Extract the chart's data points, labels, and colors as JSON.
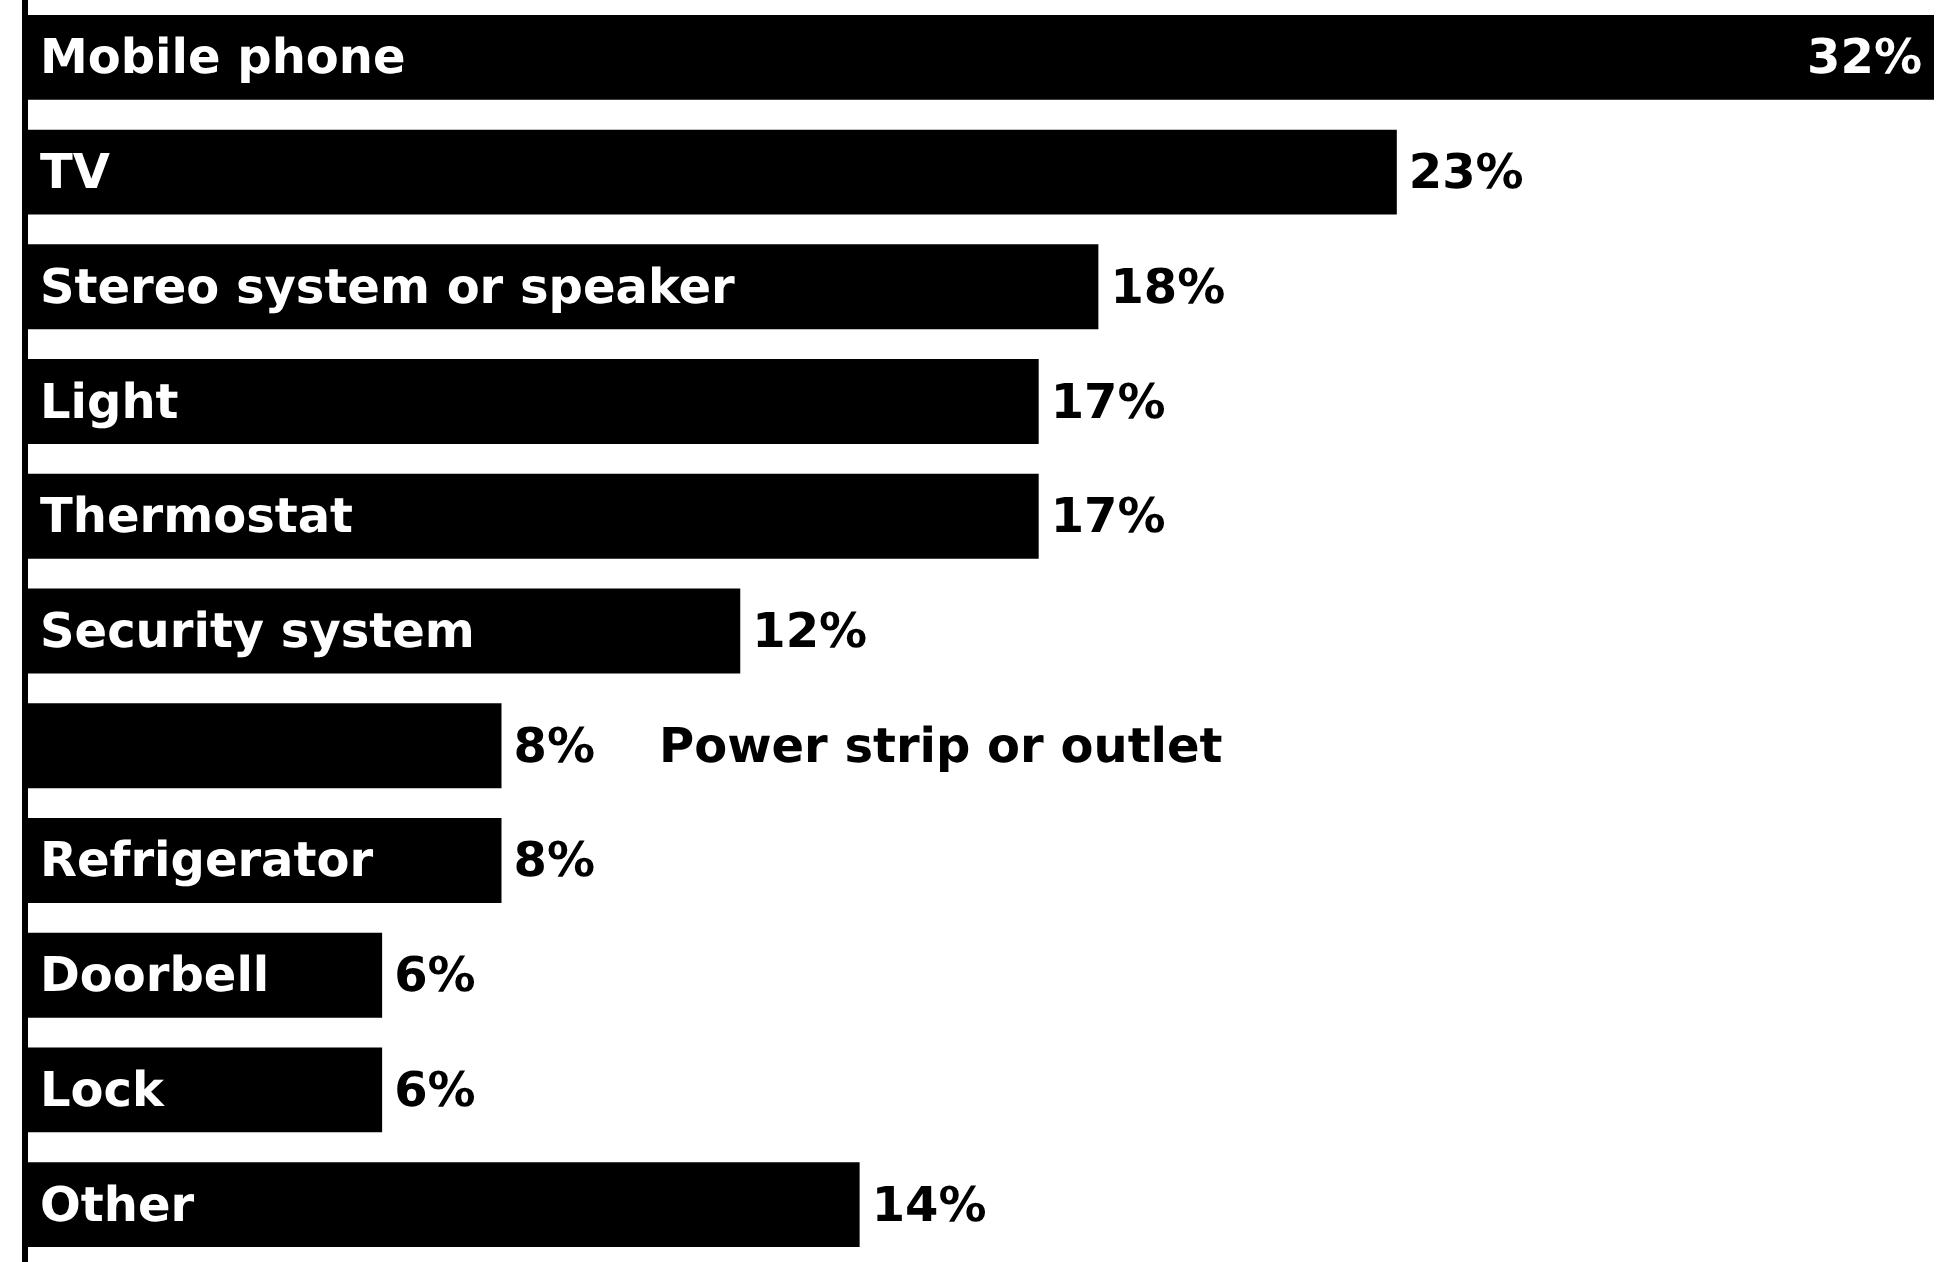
{
  "chart_data": {
    "type": "bar",
    "orientation": "horizontal",
    "color": "#000000",
    "categories": [
      "Mobile phone",
      "TV",
      "Stereo system or speaker",
      "Light",
      "Thermostat",
      "Security system",
      "Power strip or outlet",
      "Refrigerator",
      "Doorbell",
      "Lock",
      "Other"
    ],
    "values": [
      32,
      23,
      18,
      17,
      17,
      12,
      8,
      8,
      6,
      6,
      14
    ],
    "value_labels": [
      "32%",
      "23%",
      "18%",
      "17%",
      "17%",
      "12%",
      "8%",
      "8%",
      "6%",
      "6%",
      "14%"
    ]
  }
}
